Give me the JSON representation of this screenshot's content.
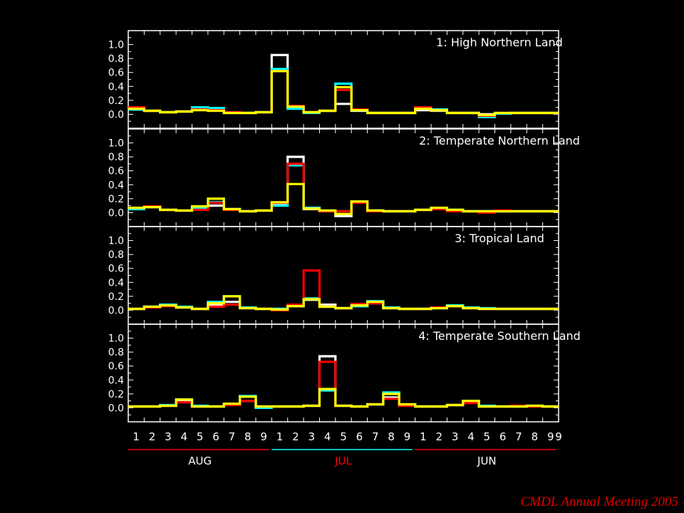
{
  "footer": "CMDL Annual Meeting 2005",
  "chart_data": {
    "type": "line",
    "step": true,
    "colors": {
      "white": "#ffffff",
      "cyan": "#00ffff",
      "red": "#ff0000",
      "yellow": "#ffff00",
      "background": "#000000"
    },
    "x_ticks": [
      "1",
      "2",
      "3",
      "4",
      "5",
      "6",
      "7",
      "8",
      "9",
      "1",
      "2",
      "3",
      "4",
      "5",
      "6",
      "7",
      "8",
      "9",
      "1",
      "2",
      "3",
      "4",
      "5",
      "6",
      "7",
      "8",
      "9"
    ],
    "y_ticks": [
      "1.0",
      "0.8",
      "0.6",
      "0.4",
      "0.2",
      "0.0"
    ],
    "ylim": [
      -0.2,
      1.2
    ],
    "groups": [
      {
        "label": "AUG",
        "start": 0,
        "end": 9,
        "underline_color": "#ff0000",
        "text_color": "#ffffff"
      },
      {
        "label": "JUL",
        "start": 9,
        "end": 18,
        "underline_color": "#00ffff",
        "text_color": "#ff0000"
      },
      {
        "label": "JUN",
        "start": 18,
        "end": 27,
        "underline_color": "#ff0000",
        "text_color": "#ffffff"
      }
    ],
    "panels": [
      {
        "title": "1: High Northern Land",
        "series": [
          {
            "color": "white",
            "values": [
              0.07,
              0.05,
              0.03,
              0.04,
              0.08,
              0.06,
              0.02,
              0.02,
              0.03,
              0.85,
              0.1,
              0.03,
              0.05,
              0.15,
              0.05,
              0.02,
              0.02,
              0.02,
              0.06,
              0.05,
              0.02,
              0.02,
              0.0,
              0.01,
              0.02,
              0.02,
              0.02
            ]
          },
          {
            "color": "cyan",
            "values": [
              0.07,
              0.05,
              0.03,
              0.04,
              0.1,
              0.09,
              0.03,
              0.02,
              0.03,
              0.65,
              0.08,
              0.02,
              0.05,
              0.44,
              0.06,
              0.02,
              0.02,
              0.02,
              0.08,
              0.07,
              0.02,
              0.02,
              -0.04,
              0.01,
              0.02,
              0.02,
              0.02
            ]
          },
          {
            "color": "red",
            "values": [
              0.1,
              0.05,
              0.03,
              0.04,
              0.07,
              0.06,
              0.03,
              0.02,
              0.03,
              0.62,
              0.12,
              0.03,
              0.05,
              0.35,
              0.07,
              0.02,
              0.02,
              0.02,
              0.1,
              0.06,
              0.02,
              0.02,
              -0.02,
              0.02,
              0.02,
              0.02,
              0.02
            ]
          },
          {
            "color": "yellow",
            "values": [
              0.08,
              0.05,
              0.03,
              0.04,
              0.06,
              0.05,
              0.02,
              0.02,
              0.03,
              0.62,
              0.11,
              0.03,
              0.05,
              0.39,
              0.06,
              0.02,
              0.02,
              0.02,
              0.08,
              0.06,
              0.02,
              0.02,
              -0.01,
              0.02,
              0.02,
              0.02,
              0.02
            ]
          }
        ]
      },
      {
        "title": "2: Temperate Northern Land",
        "series": [
          {
            "color": "white",
            "values": [
              0.07,
              0.08,
              0.04,
              0.03,
              0.05,
              0.1,
              0.05,
              0.02,
              0.03,
              0.12,
              0.8,
              0.05,
              0.02,
              -0.05,
              0.15,
              0.03,
              0.02,
              0.02,
              0.04,
              0.06,
              0.04,
              0.02,
              0.02,
              0.02,
              0.02,
              0.02,
              0.02
            ]
          },
          {
            "color": "cyan",
            "values": [
              0.05,
              0.08,
              0.04,
              0.03,
              0.07,
              0.15,
              0.05,
              0.02,
              0.03,
              0.1,
              0.68,
              0.07,
              0.03,
              0.02,
              0.16,
              0.03,
              0.02,
              0.02,
              0.04,
              0.06,
              0.04,
              0.02,
              0.02,
              0.02,
              0.02,
              0.02,
              0.02
            ]
          },
          {
            "color": "red",
            "values": [
              0.07,
              0.09,
              0.04,
              0.03,
              0.04,
              0.14,
              0.04,
              0.02,
              0.03,
              0.14,
              0.7,
              0.06,
              0.02,
              0.02,
              0.14,
              0.02,
              0.02,
              0.02,
              0.04,
              0.05,
              0.02,
              0.02,
              0.0,
              0.03,
              0.02,
              0.02,
              0.02
            ]
          },
          {
            "color": "yellow",
            "values": [
              0.07,
              0.08,
              0.04,
              0.03,
              0.09,
              0.2,
              0.05,
              0.02,
              0.03,
              0.15,
              0.41,
              0.06,
              0.03,
              -0.02,
              0.16,
              0.03,
              0.02,
              0.02,
              0.04,
              0.07,
              0.04,
              0.02,
              0.02,
              0.02,
              0.02,
              0.02,
              0.02
            ]
          }
        ]
      },
      {
        "title": "3: Tropical Land",
        "series": [
          {
            "color": "white",
            "values": [
              0.02,
              0.05,
              0.07,
              0.04,
              0.02,
              0.08,
              0.12,
              0.03,
              0.02,
              0.02,
              0.06,
              0.15,
              0.08,
              0.03,
              0.06,
              0.1,
              0.03,
              0.02,
              0.02,
              0.03,
              0.06,
              0.03,
              0.02,
              0.02,
              0.02,
              0.02,
              0.02
            ]
          },
          {
            "color": "cyan",
            "values": [
              0.02,
              0.05,
              0.08,
              0.05,
              0.02,
              0.12,
              0.2,
              0.04,
              0.02,
              0.02,
              0.08,
              0.17,
              0.05,
              0.03,
              0.06,
              0.13,
              0.04,
              0.02,
              0.02,
              0.03,
              0.07,
              0.04,
              0.03,
              0.02,
              0.02,
              0.02,
              0.02
            ]
          },
          {
            "color": "red",
            "values": [
              0.02,
              0.04,
              0.06,
              0.04,
              0.02,
              0.05,
              0.08,
              0.03,
              0.02,
              0.0,
              0.08,
              0.57,
              0.05,
              0.03,
              0.09,
              0.1,
              0.03,
              0.02,
              0.02,
              0.04,
              0.06,
              0.03,
              0.02,
              0.02,
              0.02,
              0.02,
              0.02
            ]
          },
          {
            "color": "yellow",
            "values": [
              0.02,
              0.05,
              0.07,
              0.04,
              0.02,
              0.1,
              0.2,
              0.03,
              0.02,
              0.01,
              0.06,
              0.16,
              0.05,
              0.03,
              0.07,
              0.12,
              0.03,
              0.02,
              0.02,
              0.03,
              0.06,
              0.03,
              0.02,
              0.02,
              0.02,
              0.02,
              0.02
            ]
          }
        ]
      },
      {
        "title": "4: Temperate Southern Land",
        "series": [
          {
            "color": "white",
            "values": [
              0.02,
              0.02,
              0.03,
              0.1,
              0.02,
              0.02,
              0.05,
              0.1,
              0.02,
              0.02,
              0.02,
              0.03,
              0.74,
              0.03,
              0.02,
              0.05,
              0.15,
              0.05,
              0.02,
              0.02,
              0.04,
              0.08,
              0.02,
              0.02,
              0.02,
              0.02,
              0.02
            ]
          },
          {
            "color": "cyan",
            "values": [
              0.02,
              0.02,
              0.04,
              0.12,
              0.03,
              0.02,
              0.06,
              0.17,
              0.0,
              0.02,
              0.02,
              0.03,
              0.25,
              0.03,
              0.02,
              0.05,
              0.22,
              0.04,
              0.02,
              0.02,
              0.04,
              0.1,
              0.03,
              0.02,
              0.02,
              0.03,
              0.02
            ]
          },
          {
            "color": "red",
            "values": [
              0.02,
              0.02,
              0.03,
              0.08,
              0.02,
              0.02,
              0.04,
              0.1,
              0.02,
              0.02,
              0.02,
              0.03,
              0.66,
              0.03,
              0.02,
              0.05,
              0.13,
              0.03,
              0.02,
              0.02,
              0.04,
              0.07,
              0.02,
              0.02,
              0.03,
              0.02,
              0.02
            ]
          },
          {
            "color": "yellow",
            "values": [
              0.02,
              0.02,
              0.03,
              0.12,
              0.02,
              0.02,
              0.06,
              0.16,
              0.02,
              0.02,
              0.02,
              0.03,
              0.27,
              0.03,
              0.02,
              0.05,
              0.2,
              0.05,
              0.02,
              0.02,
              0.04,
              0.1,
              0.02,
              0.02,
              0.02,
              0.03,
              0.02
            ]
          }
        ]
      }
    ]
  }
}
